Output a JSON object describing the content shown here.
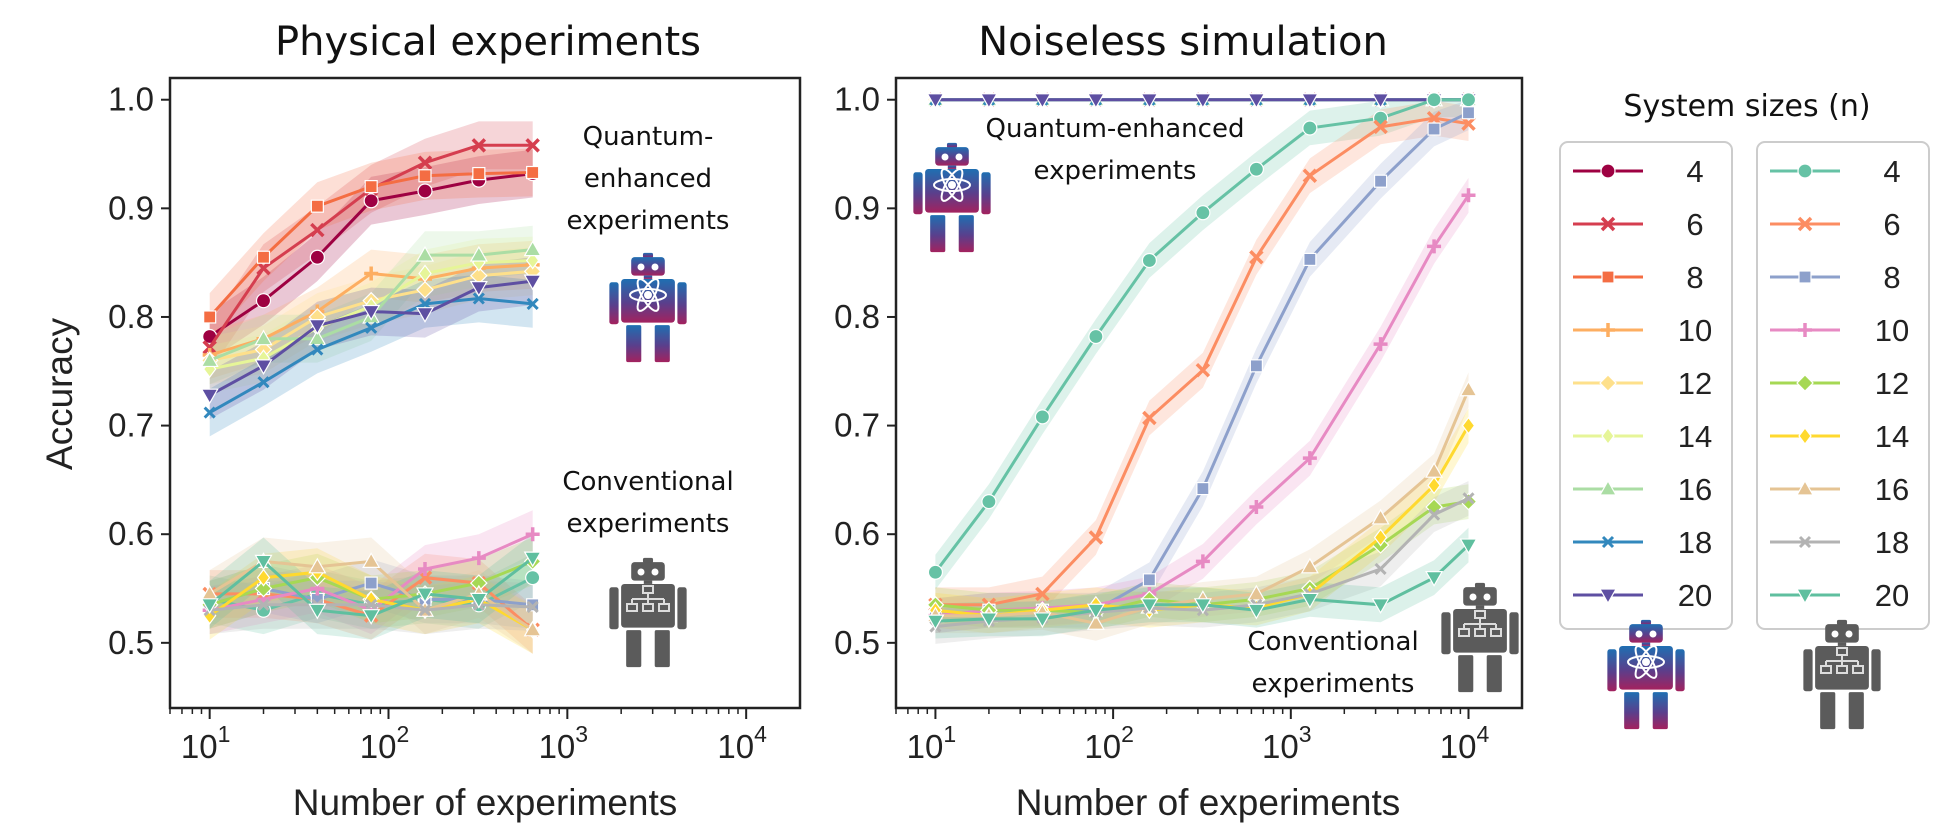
{
  "figure": {
    "ylabel": "Accuracy",
    "xlabel": "Number of experiments",
    "legend_title": "System sizes (n)",
    "legend_left_label": "Quantum-enhanced",
    "legend_right_label": "Conventional"
  },
  "colors": {
    "quantum": {
      "4": "#9e0142",
      "6": "#d53e4f",
      "8": "#f46d43",
      "10": "#fdae61",
      "12": "#fee08b",
      "14": "#e6f598",
      "16": "#abdda4",
      "18": "#3288bd",
      "20": "#5e4fa2"
    },
    "conventional": {
      "4": "#66c2a5",
      "6": "#fc8d62",
      "8": "#8da0cb",
      "10": "#e78ac3",
      "12": "#a6d854",
      "14": "#ffd92f",
      "16": "#e5c494",
      "18": "#b3b3b3",
      "20": "#5fbf9f"
    }
  },
  "markers": {
    "4": "circle",
    "6": "x",
    "8": "square",
    "10": "plus",
    "12": "diamond",
    "14": "thin-diamond",
    "16": "triangle-up",
    "18": "x-small",
    "20": "triangle-down"
  },
  "chart_data": [
    {
      "type": "line",
      "title": "Physical experiments",
      "xlabel": "Number of experiments",
      "ylabel": "Accuracy",
      "xscale": "log",
      "xlim": [
        6,
        20000
      ],
      "ylim": [
        0.44,
        1.02
      ],
      "xticks": [
        {
          "base": "10",
          "exp": "1",
          "v": 10
        },
        {
          "base": "10",
          "exp": "2",
          "v": 100
        },
        {
          "base": "10",
          "exp": "3",
          "v": 1000
        },
        {
          "base": "10",
          "exp": "4",
          "v": 10000
        }
      ],
      "yticks": [
        "1.0",
        "0.9",
        "0.8",
        "0.7",
        "0.6",
        "0.5"
      ],
      "ytick_values": [
        1.0,
        0.9,
        0.8,
        0.7,
        0.6,
        0.5
      ],
      "annotations": [
        {
          "lines": [
            "Quantum-",
            "enhanced",
            "experiments"
          ],
          "x": 600,
          "y": 0.99
        },
        {
          "lines": [
            "Conventional",
            "experiments"
          ],
          "x": 600,
          "y": 0.635
        }
      ],
      "x": [
        10,
        20,
        40,
        80,
        160,
        320,
        640
      ],
      "series": [
        {
          "name": "4",
          "group": "quantum",
          "values": [
            0.782,
            0.815,
            0.855,
            0.907,
            0.916,
            0.926,
            0.932
          ]
        },
        {
          "name": "6",
          "group": "quantum",
          "values": [
            0.772,
            0.845,
            0.88,
            0.918,
            0.942,
            0.958,
            0.958
          ]
        },
        {
          "name": "8",
          "group": "quantum",
          "values": [
            0.8,
            0.855,
            0.902,
            0.92,
            0.93,
            0.932,
            0.933
          ]
        },
        {
          "name": "10",
          "group": "quantum",
          "values": [
            0.765,
            0.78,
            0.805,
            0.84,
            0.835,
            0.845,
            0.848
          ]
        },
        {
          "name": "12",
          "group": "quantum",
          "values": [
            0.76,
            0.77,
            0.8,
            0.815,
            0.825,
            0.838,
            0.842
          ]
        },
        {
          "name": "14",
          "group": "quantum",
          "values": [
            0.752,
            0.762,
            0.79,
            0.81,
            0.84,
            0.85,
            0.852
          ]
        },
        {
          "name": "16",
          "group": "quantum",
          "values": [
            0.76,
            0.78,
            0.78,
            0.8,
            0.857,
            0.857,
            0.862
          ]
        },
        {
          "name": "18",
          "group": "quantum",
          "values": [
            0.712,
            0.74,
            0.77,
            0.79,
            0.812,
            0.817,
            0.812
          ]
        },
        {
          "name": "20",
          "group": "quantum",
          "values": [
            0.728,
            0.755,
            0.792,
            0.805,
            0.803,
            0.827,
            0.833
          ]
        },
        {
          "name": "4",
          "group": "conventional",
          "values": [
            0.54,
            0.53,
            0.545,
            0.535,
            0.54,
            0.535,
            0.56
          ]
        },
        {
          "name": "6",
          "group": "conventional",
          "values": [
            0.545,
            0.545,
            0.54,
            0.525,
            0.56,
            0.555,
            0.512
          ]
        },
        {
          "name": "8",
          "group": "conventional",
          "values": [
            0.535,
            0.55,
            0.54,
            0.555,
            0.54,
            0.54,
            0.535
          ]
        },
        {
          "name": "10",
          "group": "conventional",
          "values": [
            0.53,
            0.54,
            0.55,
            0.53,
            0.568,
            0.578,
            0.6
          ]
        },
        {
          "name": "12",
          "group": "conventional",
          "values": [
            0.535,
            0.55,
            0.56,
            0.54,
            0.545,
            0.555,
            0.575
          ]
        },
        {
          "name": "14",
          "group": "conventional",
          "values": [
            0.525,
            0.56,
            0.565,
            0.54,
            0.53,
            0.54,
            0.512
          ]
        },
        {
          "name": "16",
          "group": "conventional",
          "values": [
            0.545,
            0.575,
            0.57,
            0.575,
            0.53,
            0.545,
            0.512
          ]
        },
        {
          "name": "18",
          "group": "conventional",
          "values": [
            0.53,
            0.535,
            0.535,
            0.535,
            0.53,
            0.535,
            0.533
          ]
        },
        {
          "name": "20",
          "group": "conventional",
          "values": [
            0.535,
            0.575,
            0.53,
            0.525,
            0.545,
            0.54,
            0.578
          ]
        }
      ]
    },
    {
      "type": "line",
      "title": "Noiseless simulation",
      "xlabel": "Number of experiments",
      "ylabel": "",
      "xscale": "log",
      "xlim": [
        6,
        20000
      ],
      "ylim": [
        0.44,
        1.02
      ],
      "xticks": [
        {
          "base": "10",
          "exp": "1",
          "v": 10
        },
        {
          "base": "10",
          "exp": "2",
          "v": 100
        },
        {
          "base": "10",
          "exp": "3",
          "v": 1000
        },
        {
          "base": "10",
          "exp": "4",
          "v": 10000
        }
      ],
      "yticks": [
        "1.0",
        "0.9",
        "0.8",
        "0.7",
        "0.6",
        "0.5"
      ],
      "ytick_values": [
        1.0,
        0.9,
        0.8,
        0.7,
        0.6,
        0.5
      ],
      "annotations": [
        {
          "lines": [
            "Quantum-enhanced",
            "experiments"
          ],
          "x": 110,
          "y": 0.975
        },
        {
          "lines": [
            "Conventional",
            "experiments"
          ],
          "x": 1300,
          "y": 0.495
        }
      ],
      "x": [
        10,
        20,
        40,
        80,
        160,
        320,
        640,
        1280,
        3200,
        6400,
        10000
      ],
      "series": [
        {
          "name": "4",
          "group": "quantum",
          "values": [
            1,
            1,
            1,
            1,
            1,
            1,
            1,
            1,
            1,
            1,
            1
          ]
        },
        {
          "name": "6",
          "group": "quantum",
          "values": [
            1,
            1,
            1,
            1,
            1,
            1,
            1,
            1,
            1,
            1,
            1
          ]
        },
        {
          "name": "8",
          "group": "quantum",
          "values": [
            1,
            1,
            1,
            1,
            1,
            1,
            1,
            1,
            1,
            1,
            1
          ]
        },
        {
          "name": "10",
          "group": "quantum",
          "values": [
            1,
            1,
            1,
            1,
            1,
            1,
            1,
            1,
            1,
            1,
            1
          ]
        },
        {
          "name": "12",
          "group": "quantum",
          "values": [
            1,
            1,
            1,
            1,
            1,
            1,
            1,
            1,
            1,
            1,
            1
          ]
        },
        {
          "name": "14",
          "group": "quantum",
          "values": [
            1,
            1,
            1,
            1,
            1,
            1,
            1,
            1,
            1,
            1,
            1
          ]
        },
        {
          "name": "16",
          "group": "quantum",
          "values": [
            1,
            1,
            1,
            1,
            1,
            1,
            1,
            1,
            1,
            1,
            1
          ]
        },
        {
          "name": "18",
          "group": "quantum",
          "values": [
            1,
            1,
            1,
            1,
            1,
            1,
            1,
            1,
            1,
            1,
            1
          ]
        },
        {
          "name": "20",
          "group": "quantum",
          "values": [
            1,
            1,
            1,
            1,
            1,
            1,
            1,
            1,
            1,
            1,
            1
          ]
        },
        {
          "name": "4",
          "group": "conventional",
          "values": [
            0.565,
            0.63,
            0.708,
            0.782,
            0.852,
            0.896,
            0.936,
            0.974,
            0.983,
            1.0,
            1.0
          ]
        },
        {
          "name": "6",
          "group": "conventional",
          "values": [
            0.535,
            0.535,
            0.545,
            0.597,
            0.707,
            0.751,
            0.855,
            0.93,
            0.975,
            0.983,
            0.978
          ]
        },
        {
          "name": "8",
          "group": "conventional",
          "values": [
            0.525,
            0.53,
            0.53,
            0.53,
            0.558,
            0.642,
            0.755,
            0.853,
            0.925,
            0.973,
            0.988
          ]
        },
        {
          "name": "10",
          "group": "conventional",
          "values": [
            0.525,
            0.53,
            0.532,
            0.535,
            0.545,
            0.575,
            0.625,
            0.67,
            0.775,
            0.865,
            0.912
          ]
        },
        {
          "name": "12",
          "group": "conventional",
          "values": [
            0.535,
            0.53,
            0.53,
            0.528,
            0.54,
            0.535,
            0.54,
            0.55,
            0.59,
            0.625,
            0.63
          ]
        },
        {
          "name": "14",
          "group": "conventional",
          "values": [
            0.53,
            0.525,
            0.53,
            0.535,
            0.53,
            0.535,
            0.532,
            0.545,
            0.597,
            0.645,
            0.7
          ]
        },
        {
          "name": "16",
          "group": "conventional",
          "values": [
            0.525,
            0.525,
            0.528,
            0.518,
            0.533,
            0.54,
            0.545,
            0.57,
            0.615,
            0.658,
            0.733
          ]
        },
        {
          "name": "18",
          "group": "conventional",
          "values": [
            0.515,
            0.52,
            0.523,
            0.528,
            0.532,
            0.53,
            0.535,
            0.545,
            0.568,
            0.618,
            0.633
          ]
        },
        {
          "name": "20",
          "group": "conventional",
          "values": [
            0.52,
            0.522,
            0.522,
            0.53,
            0.535,
            0.535,
            0.53,
            0.54,
            0.535,
            0.56,
            0.59
          ]
        }
      ]
    }
  ]
}
